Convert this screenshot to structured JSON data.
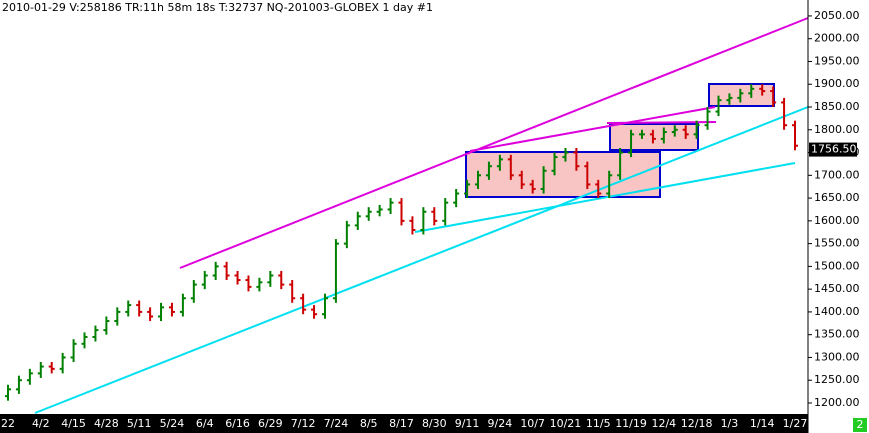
{
  "chart_data": {
    "type": "ohlc",
    "header": "2010-01-29  V:258186  TR:11h 58m 18s  T:32737  NQ-201003-GLOBEX  1 day   #1",
    "categories": [
      "22",
      null,
      null,
      "4/2",
      null,
      null,
      "4/15",
      null,
      null,
      "4/28",
      null,
      null,
      "5/11",
      null,
      null,
      "5/24",
      null,
      null,
      "6/4",
      null,
      null,
      "6/16",
      null,
      null,
      "6/29",
      null,
      null,
      "7/12",
      null,
      null,
      "7/24",
      null,
      null,
      "8/5",
      null,
      null,
      "8/17",
      null,
      null,
      "8/30",
      null,
      null,
      "9/11",
      null,
      null,
      "9/24",
      null,
      null,
      "10/7",
      null,
      null,
      "10/21",
      null,
      null,
      "11/5",
      null,
      null,
      "11/19",
      null,
      null,
      "12/4",
      null,
      null,
      "12/18",
      null,
      null,
      "1/3",
      null,
      null,
      "1/14",
      null,
      null,
      "1/27"
    ],
    "open": [
      1215,
      1230,
      1250,
      1265,
      1280,
      1275,
      1300,
      1330,
      1345,
      1360,
      1380,
      1400,
      1415,
      1400,
      1390,
      1410,
      1400,
      1430,
      1460,
      1480,
      1500,
      1480,
      1470,
      1455,
      1465,
      1480,
      1460,
      1430,
      1405,
      1395,
      1430,
      1550,
      1590,
      1610,
      1620,
      1625,
      1640,
      1600,
      1580,
      1620,
      1600,
      1640,
      1660,
      1680,
      1700,
      1720,
      1735,
      1700,
      1680,
      1670,
      1710,
      1740,
      1750,
      1720,
      1680,
      1660,
      1700,
      1750,
      1790,
      1790,
      1780,
      1795,
      1800,
      1790,
      1810,
      1840,
      1865,
      1870,
      1880,
      1890,
      1885,
      1860,
      1810
    ],
    "high": [
      1240,
      1260,
      1275,
      1290,
      1290,
      1310,
      1340,
      1355,
      1370,
      1390,
      1410,
      1425,
      1425,
      1410,
      1420,
      1420,
      1440,
      1470,
      1490,
      1510,
      1510,
      1490,
      1480,
      1475,
      1490,
      1490,
      1470,
      1440,
      1415,
      1440,
      1560,
      1600,
      1620,
      1630,
      1635,
      1650,
      1650,
      1610,
      1630,
      1630,
      1650,
      1670,
      1690,
      1710,
      1730,
      1745,
      1745,
      1710,
      1690,
      1720,
      1750,
      1760,
      1760,
      1730,
      1690,
      1710,
      1760,
      1800,
      1800,
      1800,
      1805,
      1810,
      1810,
      1820,
      1850,
      1875,
      1880,
      1890,
      1900,
      1900,
      1895,
      1870,
      1820
    ],
    "low": [
      1205,
      1220,
      1240,
      1255,
      1265,
      1265,
      1290,
      1320,
      1335,
      1350,
      1370,
      1390,
      1390,
      1380,
      1380,
      1390,
      1390,
      1420,
      1450,
      1470,
      1470,
      1460,
      1445,
      1445,
      1455,
      1450,
      1420,
      1395,
      1385,
      1385,
      1420,
      1540,
      1580,
      1600,
      1610,
      1615,
      1590,
      1570,
      1570,
      1590,
      1590,
      1630,
      1650,
      1670,
      1690,
      1710,
      1690,
      1670,
      1660,
      1660,
      1700,
      1730,
      1710,
      1670,
      1650,
      1650,
      1690,
      1740,
      1780,
      1770,
      1770,
      1785,
      1780,
      1780,
      1800,
      1830,
      1855,
      1860,
      1870,
      1875,
      1850,
      1800,
      1755
    ],
    "close": [
      1230,
      1250,
      1265,
      1280,
      1275,
      1300,
      1330,
      1345,
      1360,
      1380,
      1400,
      1415,
      1400,
      1390,
      1410,
      1400,
      1430,
      1460,
      1480,
      1500,
      1480,
      1470,
      1455,
      1465,
      1480,
      1460,
      1430,
      1405,
      1395,
      1430,
      1550,
      1590,
      1610,
      1620,
      1625,
      1640,
      1600,
      1580,
      1620,
      1600,
      1640,
      1660,
      1680,
      1700,
      1720,
      1735,
      1700,
      1680,
      1670,
      1710,
      1740,
      1750,
      1720,
      1680,
      1660,
      1700,
      1750,
      1790,
      1790,
      1780,
      1795,
      1800,
      1790,
      1810,
      1840,
      1865,
      1870,
      1880,
      1890,
      1885,
      1860,
      1810,
      1765
    ],
    "up_color": "#008000",
    "down_color": "#cc0000",
    "ylim": [
      1178,
      2085
    ],
    "yticks": [
      {
        "value": 1200,
        "label": "1200.00"
      },
      {
        "value": 1250,
        "label": "1250.00"
      },
      {
        "value": 1300,
        "label": "1300.00"
      },
      {
        "value": 1350,
        "label": "1350.00"
      },
      {
        "value": 1400,
        "label": "1400.00"
      },
      {
        "value": 1450,
        "label": "1450.00"
      },
      {
        "value": 1500,
        "label": "1500.00"
      },
      {
        "value": 1550,
        "label": "1550.00"
      },
      {
        "value": 1600,
        "label": "1600.00"
      },
      {
        "value": 1650,
        "label": "1650.00"
      },
      {
        "value": 1700,
        "label": "1700.00"
      },
      {
        "value": 1750,
        "label": "1750.00"
      },
      {
        "value": 1800,
        "label": "1800.00"
      },
      {
        "value": 1850,
        "label": "1850.00"
      },
      {
        "value": 1900,
        "label": "1900.00"
      },
      {
        "value": 1950,
        "label": "1950.00"
      },
      {
        "value": 2000,
        "label": "2000.00"
      },
      {
        "value": 2050,
        "label": "2050.00"
      }
    ],
    "last_price": {
      "value": 1756.5,
      "label": "1756.50"
    },
    "badge": "2"
  }
}
